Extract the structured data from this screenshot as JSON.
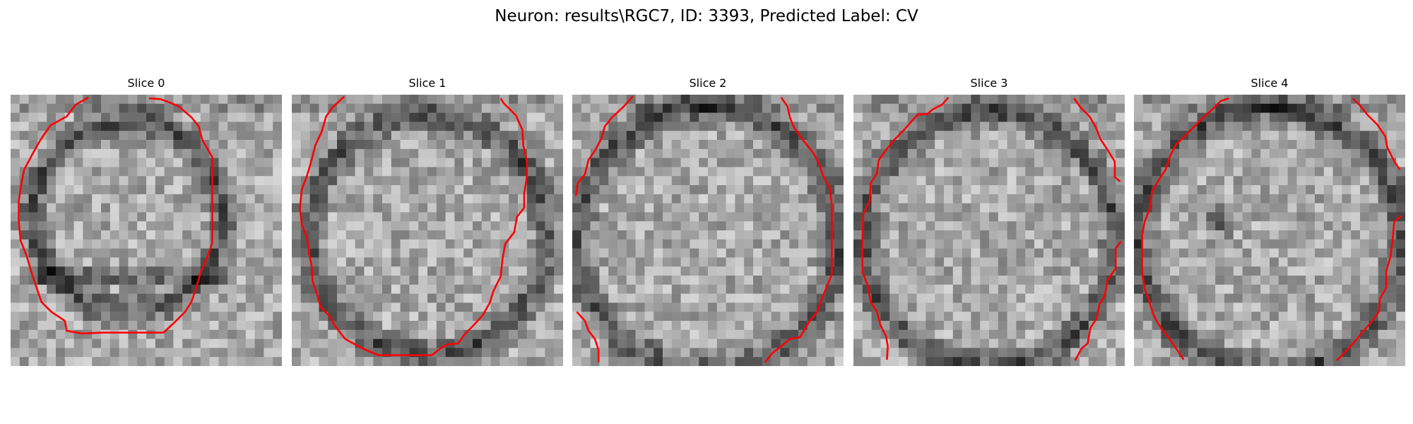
{
  "figure": {
    "title": "Neuron: results\\RGC7, ID: 3393, Predicted Label: CV"
  },
  "colors": {
    "contour": "#ff0000",
    "background": "#ffffff"
  },
  "panels": [
    {
      "title": "Slice 0"
    },
    {
      "title": "Slice 1"
    },
    {
      "title": "Slice 2"
    },
    {
      "title": "Slice 3"
    },
    {
      "title": "Slice 4"
    }
  ]
}
